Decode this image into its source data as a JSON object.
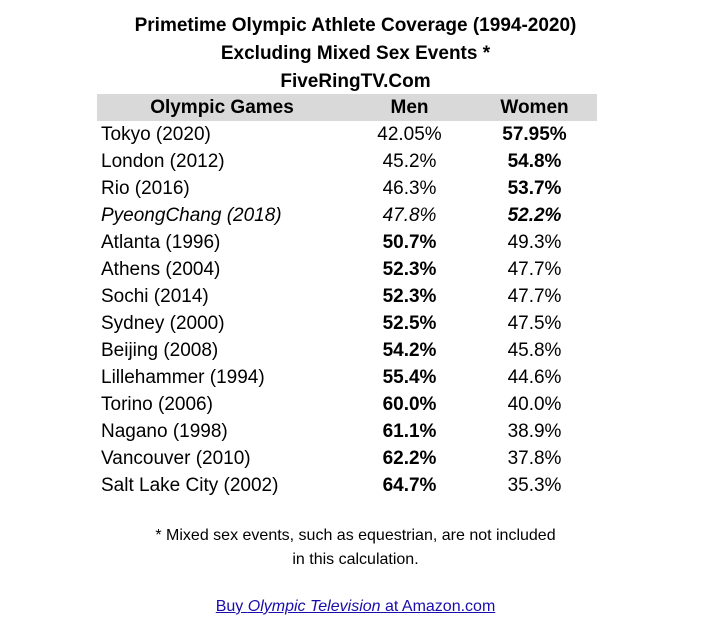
{
  "title": {
    "line1": "Primetime Olympic Athlete Coverage (1994-2020)",
    "line2": "Excluding Mixed Sex Events *",
    "line3": "FiveRingTV.Com"
  },
  "table": {
    "headers": {
      "games": "Olympic Games",
      "men": "Men",
      "women": "Women"
    },
    "rows": [
      {
        "games": "Tokyo (2020)",
        "men": "42.05%",
        "women": "57.95%",
        "bold": "women",
        "italic": false
      },
      {
        "games": "London (2012)",
        "men": "45.2%",
        "women": "54.8%",
        "bold": "women",
        "italic": false
      },
      {
        "games": "Rio (2016)",
        "men": "46.3%",
        "women": "53.7%",
        "bold": "women",
        "italic": false
      },
      {
        "games": "PyeongChang (2018)",
        "men": "47.8%",
        "women": "52.2%",
        "bold": "women",
        "italic": true
      },
      {
        "games": "Atlanta (1996)",
        "men": "50.7%",
        "women": "49.3%",
        "bold": "men",
        "italic": false
      },
      {
        "games": "Athens (2004)",
        "men": "52.3%",
        "women": "47.7%",
        "bold": "men",
        "italic": false
      },
      {
        "games": "Sochi (2014)",
        "men": "52.3%",
        "women": "47.7%",
        "bold": "men",
        "italic": false
      },
      {
        "games": "Sydney (2000)",
        "men": "52.5%",
        "women": "47.5%",
        "bold": "men",
        "italic": false
      },
      {
        "games": "Beijing (2008)",
        "men": "54.2%",
        "women": "45.8%",
        "bold": "men",
        "italic": false
      },
      {
        "games": "Lillehammer (1994)",
        "men": "55.4%",
        "women": "44.6%",
        "bold": "men",
        "italic": false
      },
      {
        "games": "Torino (2006)",
        "men": "60.0%",
        "women": "40.0%",
        "bold": "men",
        "italic": false
      },
      {
        "games": "Nagano (1998)",
        "men": "61.1%",
        "women": "38.9%",
        "bold": "men",
        "italic": false
      },
      {
        "games": "Vancouver (2010)",
        "men": "62.2%",
        "women": "37.8%",
        "bold": "men",
        "italic": false
      },
      {
        "games": "Salt Lake City (2002)",
        "men": "64.7%",
        "women": "35.3%",
        "bold": "men",
        "italic": false
      }
    ]
  },
  "footnote": {
    "line1": "* Mixed sex events, such as equestrian, are not included",
    "line2": "in this calculation."
  },
  "buy_link": {
    "prefix": "Buy ",
    "book": "Olympic Television",
    "suffix": " at Amazon.com"
  }
}
